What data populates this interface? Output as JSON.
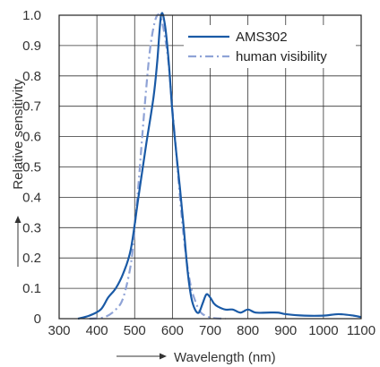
{
  "chart_data": {
    "type": "line",
    "title": "",
    "xlabel": "Wavelength (nm)",
    "ylabel": "Relative sensitivity",
    "xlim": [
      300,
      1100
    ],
    "ylim": [
      0,
      1.0
    ],
    "x_ticks": [
      300,
      400,
      500,
      600,
      700,
      800,
      900,
      1000,
      1100
    ],
    "x_tick_labels": [
      "300",
      "400",
      "500",
      "600",
      "700",
      "800",
      "900",
      "1000",
      "1100"
    ],
    "y_ticks": [
      0,
      0.1,
      0.2,
      0.3,
      0.4,
      0.5,
      0.6,
      0.7,
      0.8,
      0.9,
      1.0
    ],
    "y_tick_labels": [
      "0",
      "0.1",
      "0.2",
      "0.3",
      "0.4",
      "0.5",
      "0.6",
      "0.7",
      "0.8",
      "0.9",
      "1.0"
    ],
    "grid": true,
    "legend_position": "top-right",
    "series": [
      {
        "name": "AMS302",
        "color": "#1a5aa6",
        "style": "solid",
        "x": [
          350,
          380,
          410,
          430,
          450,
          470,
          490,
          510,
          530,
          550,
          560,
          570,
          580,
          590,
          600,
          610,
          620,
          630,
          640,
          650,
          660,
          670,
          680,
          690,
          700,
          710,
          720,
          740,
          760,
          780,
          800,
          820,
          850,
          880,
          900,
          950,
          1000,
          1040,
          1080,
          1100
        ],
        "y": [
          0.0,
          0.01,
          0.03,
          0.07,
          0.1,
          0.15,
          0.23,
          0.4,
          0.57,
          0.73,
          0.85,
          1.0,
          0.97,
          0.85,
          0.68,
          0.55,
          0.43,
          0.3,
          0.16,
          0.07,
          0.03,
          0.02,
          0.05,
          0.08,
          0.07,
          0.05,
          0.04,
          0.03,
          0.03,
          0.02,
          0.03,
          0.02,
          0.02,
          0.02,
          0.015,
          0.01,
          0.01,
          0.015,
          0.01,
          0.005
        ]
      },
      {
        "name": "human visibility",
        "color": "#8fa3d6",
        "style": "dash-dot",
        "x": [
          380,
          420,
          450,
          470,
          490,
          500,
          510,
          520,
          530,
          540,
          550,
          560,
          570,
          580,
          590,
          600,
          610,
          620,
          630,
          640,
          650,
          660,
          670,
          680,
          700,
          720,
          740
        ],
        "y": [
          0.0,
          0.005,
          0.03,
          0.07,
          0.18,
          0.3,
          0.44,
          0.6,
          0.75,
          0.88,
          0.96,
          1.0,
          0.99,
          0.93,
          0.84,
          0.69,
          0.55,
          0.4,
          0.27,
          0.17,
          0.1,
          0.06,
          0.03,
          0.015,
          0.004,
          0.001,
          0.0
        ]
      }
    ]
  }
}
